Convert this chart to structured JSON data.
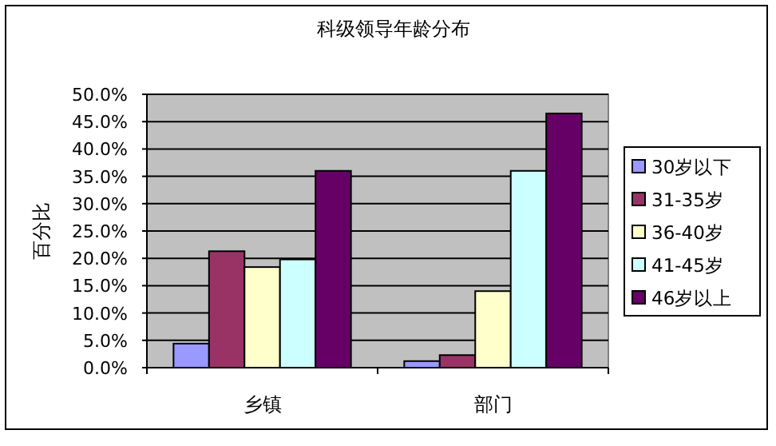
{
  "chart_data": {
    "type": "bar",
    "title": "科级领导年龄分布",
    "ylabel": "百分比",
    "categories": [
      "乡镇",
      "部门"
    ],
    "series": [
      {
        "name": "30岁以下",
        "color": "#9999ff",
        "values": [
          4.4,
          1.2
        ]
      },
      {
        "name": "31-35岁",
        "color": "#993366",
        "values": [
          21.3,
          2.3
        ]
      },
      {
        "name": "36-40岁",
        "color": "#ffffcc",
        "values": [
          18.4,
          14.0
        ]
      },
      {
        "name": "41-45岁",
        "color": "#ccffff",
        "values": [
          19.8,
          36.0
        ]
      },
      {
        "name": "46岁以上",
        "color": "#660066",
        "values": [
          36.0,
          46.5
        ]
      }
    ],
    "ylim": [
      0,
      50
    ],
    "yticks": [
      {
        "value": 0,
        "label": "0.0%"
      },
      {
        "value": 5,
        "label": "5.0%"
      },
      {
        "value": 10,
        "label": "10.0%"
      },
      {
        "value": 15,
        "label": "15.0%"
      },
      {
        "value": 20,
        "label": "20.0%"
      },
      {
        "value": 25,
        "label": "25.0%"
      },
      {
        "value": 30,
        "label": "30.0%"
      },
      {
        "value": 35,
        "label": "35.0%"
      },
      {
        "value": 40,
        "label": "40.0%"
      },
      {
        "value": 45,
        "label": "45.0%"
      },
      {
        "value": 50,
        "label": "50.0%"
      }
    ],
    "grid": "y",
    "legend": "right"
  }
}
